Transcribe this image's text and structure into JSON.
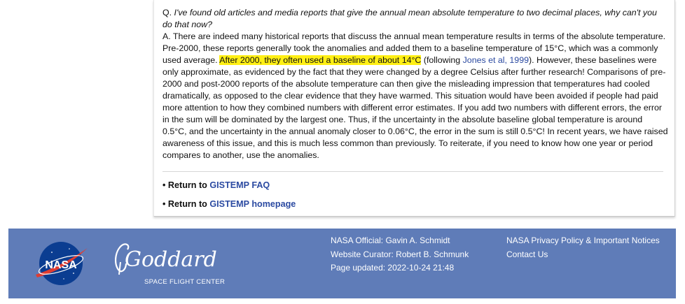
{
  "qa": {
    "question_prefix": "Q.",
    "question": "I've found old articles and media reports that give the annual mean absolute temperature to two decimal places, why can't you do that now?",
    "answer_part1": "A. There are indeed many historical reports that discuss the annual mean temperature results in terms of the absolute temperature. Pre-2000, these reports generally took the anomalies and added them to a baseline temperature of 15°C, which was a commonly used average. ",
    "answer_highlight": "After 2000, they often used a baseline of about 14°C",
    "answer_part2": " (following ",
    "answer_link": "Jones et al, 1999",
    "answer_part3": "). However, these baselines were only approximate, as evidenced by the fact that they were changed by a degree Celsius after further research! Comparisons of pre-2000 and post-2000 reports of the absolute temperature can then give the misleading impression that temperatures had cooled dramatically, as opposed to the clear evidence that they have warmed. This situation would have been avoided if people had paid more attention to how they combined numbers with different error estimates. If you add two numbers with different errors, the error in the sum will be dominated by the largest one. Thus, if the uncertainty in the absolute baseline global temperature is around 0.5°C, and the uncertainty in the annual anomaly closer to 0.06°C, the error in the sum is still 0.5°C! In recent years, we have raised awareness of this issue, and this is much less common than previously. To reiterate, if you need to know how one year or period compares to another, use the anomalies."
  },
  "returns": {
    "faq_prefix": "• Return to ",
    "faq_link": "GISTEMP FAQ",
    "home_prefix": "• Return to ",
    "home_link": "GISTEMP homepage"
  },
  "footer": {
    "nasa_logo_text": "NASA",
    "goddard_script": "Goddard",
    "goddard_sub": "SPACE FLIGHT CENTER",
    "official": "NASA Official: Gavin A. Schmidt",
    "curator": "Website Curator: Robert B. Schmunk",
    "updated": "Page updated: 2022-10-24 21:48",
    "privacy_link": "NASA Privacy Policy & Important Notices",
    "contact_link": "Contact Us"
  },
  "colors": {
    "footer_bg": "#5f7cb8",
    "highlight": "#ffef14",
    "link": "#2b4aa1"
  }
}
